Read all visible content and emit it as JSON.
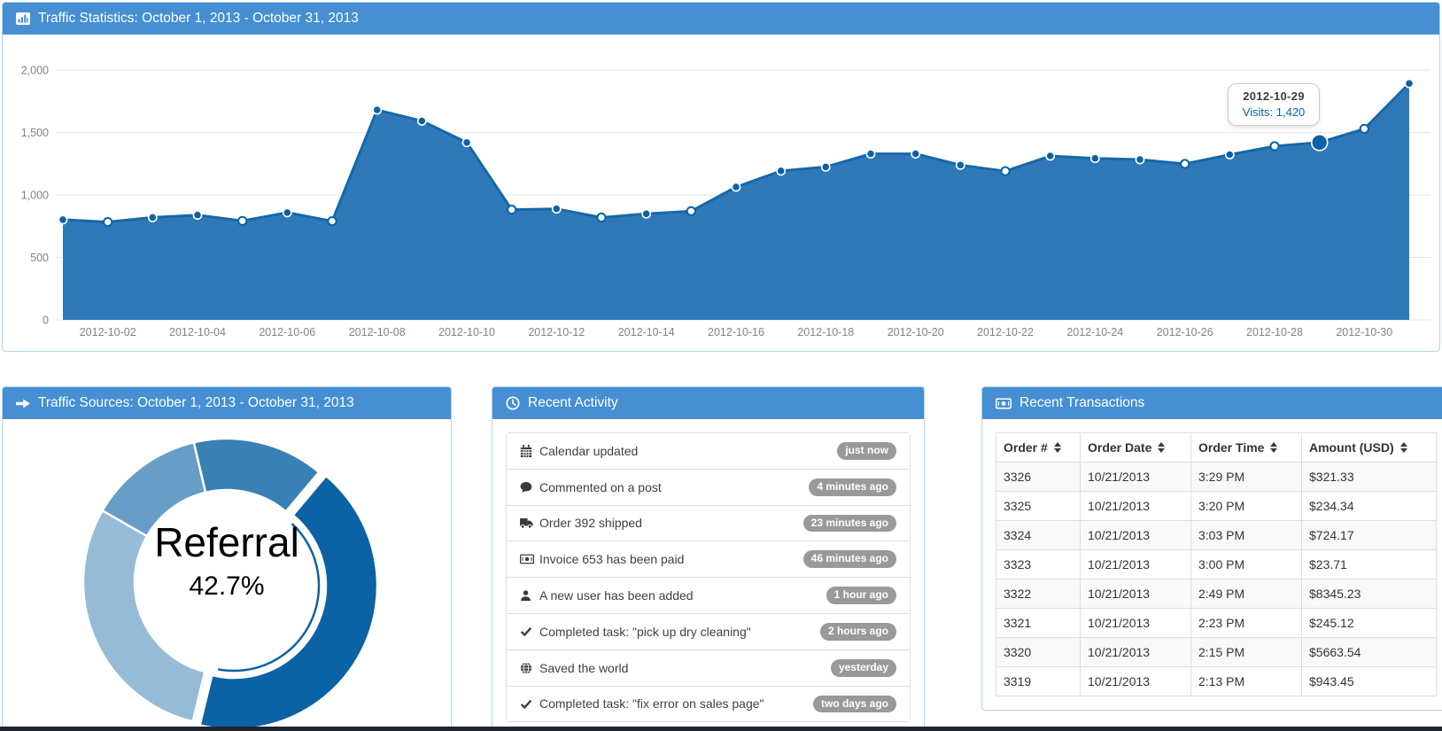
{
  "colors": {
    "panel_header_bg": "#458fd2",
    "panel_border": "#b3d4f0",
    "chart_line": "#1668a8",
    "chart_fill": "#3079b8",
    "chart_point": "#0b62a4",
    "grid_line": "#e6e6e6",
    "axis_text": "#7b858e",
    "badge_bg": "#999999",
    "table_border": "#dddddd",
    "stripe_bg": "#f9f9f9",
    "bottom_bar": "#20242e",
    "tooltip_value_color": "#0b62a4"
  },
  "traffic_stats": {
    "title": "Traffic Statistics: October 1, 2013 - October 31, 2013",
    "tooltip": {
      "title": "2012-10-29",
      "value": "Visits: 1,420"
    },
    "y_tick_labels": [
      "0",
      "500",
      "1,000",
      "1,500",
      "2,000"
    ]
  },
  "traffic_sources": {
    "title": "Traffic Sources: October 1, 2013 - October 31, 2013",
    "donut_center_label": "Referral",
    "donut_center_value": "42.7%"
  },
  "recent_activity": {
    "title": "Recent Activity",
    "items": [
      {
        "icon": "calendar-icon",
        "text": "Calendar updated",
        "badge": "just now"
      },
      {
        "icon": "comment-icon",
        "text": "Commented on a post",
        "badge": "4 minutes ago"
      },
      {
        "icon": "truck-icon",
        "text": "Order 392 shipped",
        "badge": "23 minutes ago"
      },
      {
        "icon": "money-icon",
        "text": "Invoice 653 has been paid",
        "badge": "46 minutes ago"
      },
      {
        "icon": "user-icon",
        "text": "A new user has been added",
        "badge": "1 hour ago"
      },
      {
        "icon": "check-icon",
        "text": "Completed task: \"pick up dry cleaning\"",
        "badge": "2 hours ago"
      },
      {
        "icon": "globe-icon",
        "text": "Saved the world",
        "badge": "yesterday"
      },
      {
        "icon": "check-icon",
        "text": "Completed task: \"fix error on sales page\"",
        "badge": "two days ago"
      }
    ]
  },
  "recent_transactions": {
    "title": "Recent Transactions",
    "columns": [
      "Order #",
      "Order Date",
      "Order Time",
      "Amount (USD)"
    ],
    "rows": [
      [
        "3326",
        "10/21/2013",
        "3:29 PM",
        "$321.33"
      ],
      [
        "3325",
        "10/21/2013",
        "3:20 PM",
        "$234.34"
      ],
      [
        "3324",
        "10/21/2013",
        "3:03 PM",
        "$724.17"
      ],
      [
        "3323",
        "10/21/2013",
        "3:00 PM",
        "$23.71"
      ],
      [
        "3322",
        "10/21/2013",
        "2:49 PM",
        "$8345.23"
      ],
      [
        "3321",
        "10/21/2013",
        "2:23 PM",
        "$245.12"
      ],
      [
        "3320",
        "10/21/2013",
        "2:15 PM",
        "$5663.54"
      ],
      [
        "3319",
        "10/21/2013",
        "2:13 PM",
        "$943.45"
      ]
    ]
  },
  "chart_data": [
    {
      "type": "area",
      "title": "Traffic Statistics: October 1, 2013 - October 31, 2013",
      "x": [
        "2012-10-01",
        "2012-10-02",
        "2012-10-03",
        "2012-10-04",
        "2012-10-05",
        "2012-10-06",
        "2012-10-07",
        "2012-10-08",
        "2012-10-09",
        "2012-10-10",
        "2012-10-11",
        "2012-10-12",
        "2012-10-13",
        "2012-10-14",
        "2012-10-15",
        "2012-10-16",
        "2012-10-17",
        "2012-10-18",
        "2012-10-19",
        "2012-10-20",
        "2012-10-21",
        "2012-10-22",
        "2012-10-23",
        "2012-10-24",
        "2012-10-25",
        "2012-10-26",
        "2012-10-27",
        "2012-10-28",
        "2012-10-29",
        "2012-10-30",
        "2012-10-31"
      ],
      "series": [
        {
          "name": "Visits",
          "values": [
            802,
            783,
            820,
            839,
            792,
            859,
            790,
            1680,
            1592,
            1420,
            882,
            889,
            819,
            849,
            870,
            1063,
            1192,
            1224,
            1329,
            1329,
            1239,
            1190,
            1312,
            1293,
            1283,
            1248,
            1323,
            1390,
            1420,
            1529,
            1892
          ]
        }
      ],
      "ylim": [
        0,
        2000
      ],
      "yticks": [
        0,
        500,
        1000,
        1500,
        2000
      ],
      "x_tick_labels": [
        "2012-10-02",
        "2012-10-04",
        "2012-10-06",
        "2012-10-08",
        "2012-10-10",
        "2012-10-12",
        "2012-10-14",
        "2012-10-16",
        "2012-10-18",
        "2012-10-20",
        "2012-10-22",
        "2012-10-24",
        "2012-10-26",
        "2012-10-28",
        "2012-10-30"
      ],
      "grid": true,
      "legend": "none",
      "hover": {
        "index": 28,
        "date": "2012-10-29",
        "value": 1420
      },
      "hollow_points": [
        1,
        4,
        6,
        10,
        12,
        14,
        21,
        25,
        27,
        29
      ]
    },
    {
      "type": "donut",
      "title": "Traffic Sources: October 1, 2013 - October 31, 2013",
      "center_label": "Referral",
      "center_value": "42.7%",
      "segments": [
        {
          "label": "Referral",
          "value": 42.7,
          "color": "#0b62a4",
          "selected": true
        },
        {
          "label": "",
          "value": 29.5,
          "color": "#95bbd7",
          "selected": false
        },
        {
          "label": "",
          "value": 13.0,
          "color": "#679dc6",
          "selected": false
        },
        {
          "label": "",
          "value": 14.8,
          "color": "#3980b5",
          "selected": false
        }
      ]
    }
  ]
}
